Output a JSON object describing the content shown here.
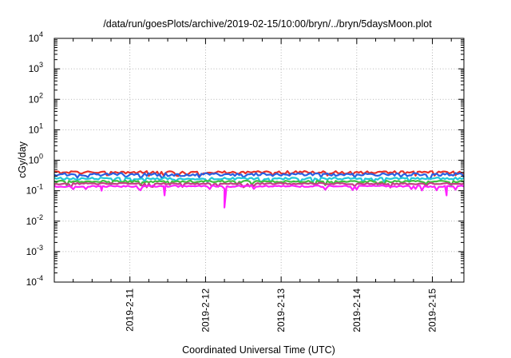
{
  "chart_data": {
    "type": "line",
    "title": "/data/run/goesPlots/archive/2019-02-15/10:00/bryn/../bryn/5daysMoon.plot",
    "xlabel": "Coordinated Universal Time (UTC)",
    "ylabel": "cGy/day",
    "yscale": "log",
    "ylim": [
      0.0001,
      10000
    ],
    "y_ticks": [
      {
        "base": "10",
        "exp": "4",
        "value": 10000
      },
      {
        "base": "10",
        "exp": "3",
        "value": 1000
      },
      {
        "base": "10",
        "exp": "2",
        "value": 100
      },
      {
        "base": "10",
        "exp": "1",
        "value": 10
      },
      {
        "base": "10",
        "exp": "0",
        "value": 1
      },
      {
        "base": "10",
        "exp": "-1",
        "value": 0.1
      },
      {
        "base": "10",
        "exp": "-2",
        "value": 0.01
      },
      {
        "base": "10",
        "exp": "-3",
        "value": 0.001
      },
      {
        "base": "10",
        "exp": "-4",
        "value": 0.0001
      }
    ],
    "xlim": [
      "2019-02-10 00:00",
      "2019-02-15 10:00"
    ],
    "x_ticks": [
      {
        "label": "2019-2-11",
        "date": "2019-02-11"
      },
      {
        "label": "2019-2-12",
        "date": "2019-02-12"
      },
      {
        "label": "2019-2-13",
        "date": "2019-02-13"
      },
      {
        "label": "2019-2-14",
        "date": "2019-02-14"
      },
      {
        "label": "2019-2-15",
        "date": "2019-02-15"
      }
    ],
    "grid": true,
    "series": [
      {
        "color": "#e8302a",
        "level": 0.4,
        "noise": 0.1,
        "dips": []
      },
      {
        "color": "#2a5fe0",
        "level": 0.34,
        "noise": 0.12,
        "dips": []
      },
      {
        "color": "#20c8d8",
        "level": 0.25,
        "noise": 0.08,
        "dips": []
      },
      {
        "color": "#40c040",
        "level": 0.2,
        "noise": 0.07,
        "dips": []
      },
      {
        "color": "#c04080",
        "level": 0.17,
        "noise": 0.06,
        "dips": []
      },
      {
        "color": "#ff20ff",
        "level": 0.14,
        "noise": 0.06,
        "dips": [
          {
            "date": "2019-02-10 15:00",
            "value": 0.1
          },
          {
            "date": "2019-02-11 11:00",
            "value": 0.07
          },
          {
            "date": "2019-02-12 06:00",
            "value": 0.028
          },
          {
            "date": "2019-02-15 04:30",
            "value": 0.07
          }
        ]
      }
    ]
  }
}
